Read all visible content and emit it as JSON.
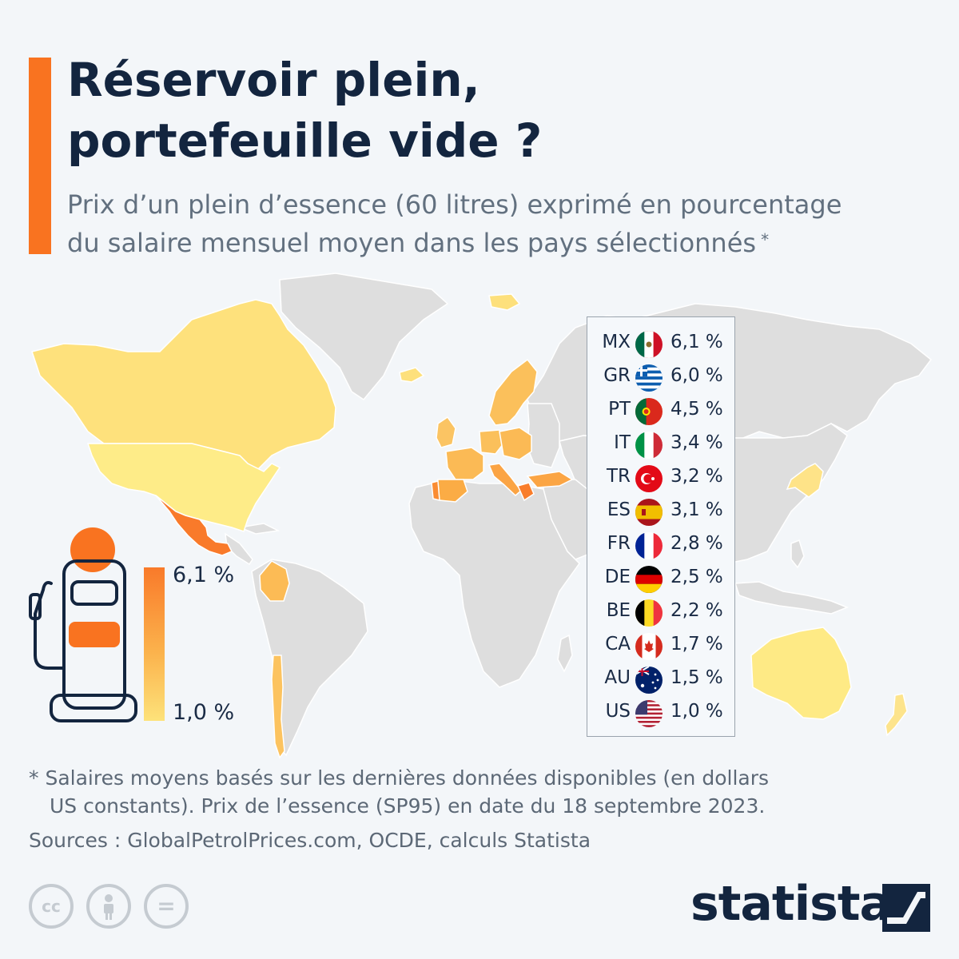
{
  "title_lines": [
    "Réservoir plein,",
    "portefeuille vide ?"
  ],
  "subtitle_lines": [
    "Prix d’un plein d’essence (60 litres) exprimé en pourcentage",
    "du salaire mensuel moyen dans les pays sélectionnés"
  ],
  "subtitle_marker": "*",
  "scale": {
    "max_label": "6,1 %",
    "min_label": "1,0 %",
    "min": 1.0,
    "max": 6.1
  },
  "colors": {
    "accent": "#f97320",
    "low": "#fde27a",
    "mid": "#fbb24c",
    "high": "#f97a2a",
    "no_data": "#dedede",
    "title": "#13253f"
  },
  "chart_data": {
    "type": "table",
    "title": "Réservoir plein, portefeuille vide ?",
    "unit": "%",
    "rows": [
      {
        "code": "MX",
        "value": 6.1,
        "label": "6,1 %",
        "flag": "mexico-flag"
      },
      {
        "code": "GR",
        "value": 6.0,
        "label": "6,0 %",
        "flag": "greece-flag"
      },
      {
        "code": "PT",
        "value": 4.5,
        "label": "4,5 %",
        "flag": "portugal-flag"
      },
      {
        "code": "IT",
        "value": 3.4,
        "label": "3,4 %",
        "flag": "italy-flag"
      },
      {
        "code": "TR",
        "value": 3.2,
        "label": "3,2 %",
        "flag": "turkey-flag"
      },
      {
        "code": "ES",
        "value": 3.1,
        "label": "3,1 %",
        "flag": "spain-flag"
      },
      {
        "code": "FR",
        "value": 2.8,
        "label": "2,8 %",
        "flag": "france-flag"
      },
      {
        "code": "DE",
        "value": 2.5,
        "label": "2,5 %",
        "flag": "germany-flag"
      },
      {
        "code": "BE",
        "value": 2.2,
        "label": "2,2 %",
        "flag": "belgium-flag"
      },
      {
        "code": "CA",
        "value": 1.7,
        "label": "1,7 %",
        "flag": "canada-flag"
      },
      {
        "code": "AU",
        "value": 1.5,
        "label": "1,5 %",
        "flag": "australia-flag"
      },
      {
        "code": "US",
        "value": 1.0,
        "label": "1,0 %",
        "flag": "usa-flag"
      }
    ]
  },
  "footnote_lines": [
    "* Salaires moyens basés sur les dernières données disponibles (en dollars",
    "US constants). Prix de l’essence (SP95) en date du 18 septembre 2023."
  ],
  "sources": "Sources : GlobalPetrolPrices.com, OCDE, calculs Statista",
  "license_icons": [
    {
      "name": "creative-commons-icon",
      "text": "cc"
    },
    {
      "name": "attribution-icon",
      "text": ""
    },
    {
      "name": "no-derivatives-icon",
      "text": "="
    }
  ],
  "brand": "statista"
}
